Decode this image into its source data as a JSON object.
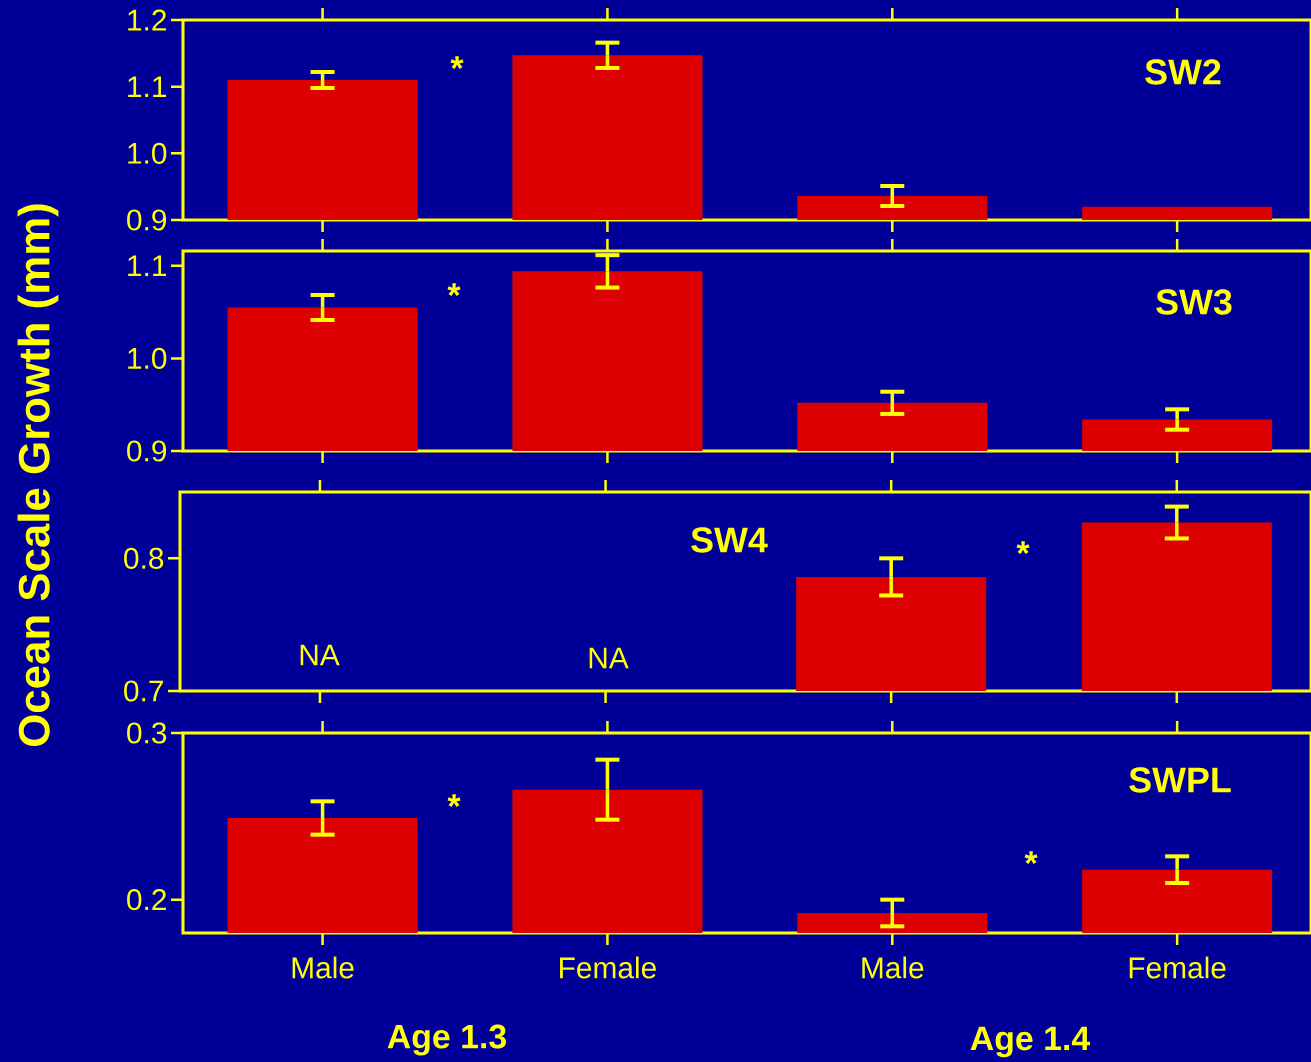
{
  "chart_data": [
    {
      "type": "bar",
      "title": "SW2",
      "ylabel": "Ocean Scale Growth (mm)",
      "categories": [
        null,
        null,
        null,
        null
      ],
      "values": [
        1.11,
        1.147,
        0.936,
        0.92
      ],
      "errors": [
        0.012,
        0.019,
        0.015,
        null
      ],
      "color": "#dd0000",
      "ylim": [
        0.9,
        1.2
      ],
      "yticks": [
        {
          "value": 0.9,
          "label": "0.9"
        },
        {
          "value": 1.0,
          "label": "1.0"
        },
        {
          "value": 1.1,
          "label": "1.1"
        },
        {
          "value": 1.2,
          "label": "1.2"
        }
      ],
      "tick_labels": "y",
      "annotations": [
        "*"
      ]
    },
    {
      "type": "bar",
      "title": "SW3",
      "categories": [
        null,
        null,
        null,
        null
      ],
      "values": [
        1.055,
        1.094,
        0.952,
        0.934
      ],
      "errors": [
        0.0135,
        0.0175,
        0.012,
        0.011
      ],
      "color": "#dd0000",
      "ylim": [
        0.9,
        1.116
      ],
      "yticks": [
        {
          "value": 0.9,
          "label": "0.9"
        },
        {
          "value": 1.0,
          "label": "1.0"
        },
        {
          "value": 1.1,
          "label": "1.1"
        }
      ],
      "tick_labels": "y",
      "annotations": [
        "*"
      ]
    },
    {
      "type": "bar",
      "title": "SW4",
      "categories": [
        null,
        null,
        null,
        null
      ],
      "values": [
        null,
        null,
        0.786,
        0.827
      ],
      "errors": [
        null,
        null,
        0.014,
        0.012
      ],
      "color": "#dd0000",
      "ylim": [
        0.7,
        0.85
      ],
      "yticks": [
        {
          "value": 0.7,
          "label": "0.7"
        },
        {
          "value": 0.8,
          "label": "0.8"
        }
      ],
      "tick_labels": "y",
      "annotations": [
        "NA",
        "NA",
        "*"
      ]
    },
    {
      "type": "bar",
      "title": "SWPL",
      "categories": [
        "Male",
        "Female",
        "Male",
        "Female"
      ],
      "values": [
        0.249,
        0.266,
        0.192,
        0.218
      ],
      "errors": [
        0.01,
        0.018,
        0.008,
        0.008
      ],
      "color": "#dd0000",
      "ylim": [
        0.18,
        0.3
      ],
      "yticks": [
        {
          "value": 0.2,
          "label": "0.2"
        },
        {
          "value": 0.3,
          "label": "0.3"
        }
      ],
      "annotations": [
        "*",
        "*",
        "Age 1.3",
        "Age 1.4"
      ]
    }
  ]
}
